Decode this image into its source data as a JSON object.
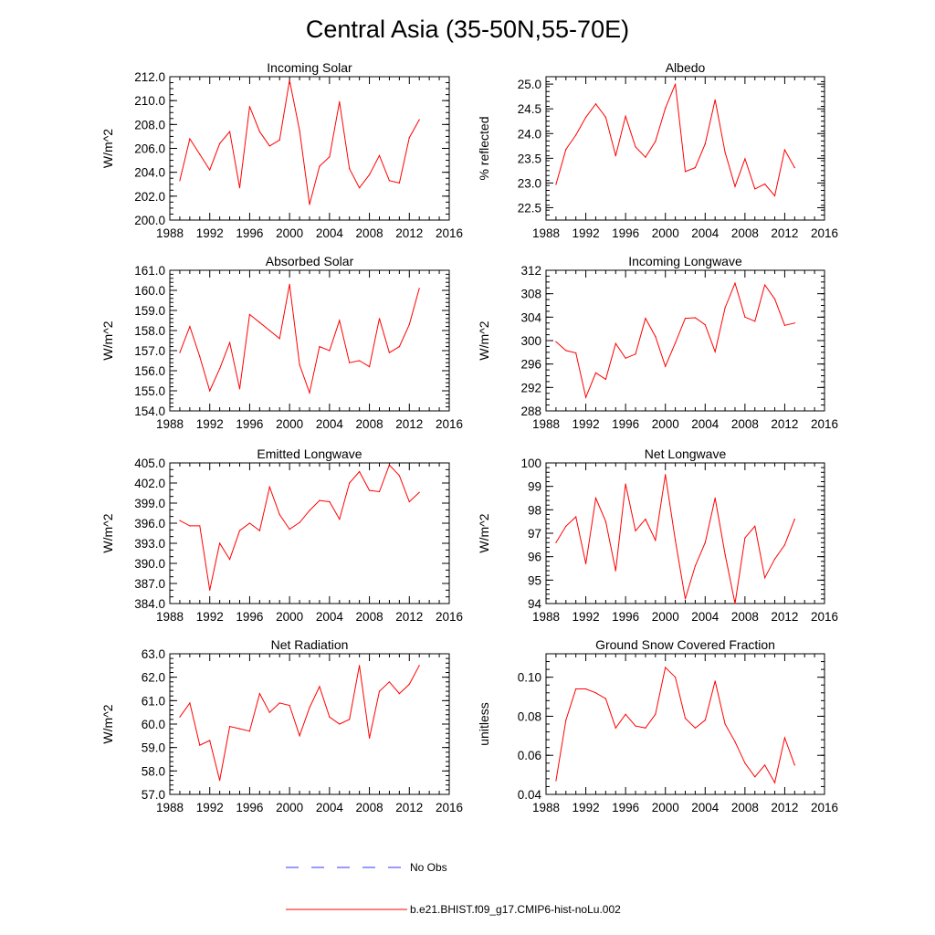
{
  "title": "Central Asia (35-50N,55-70E)",
  "chart_data": [
    {
      "type": "line",
      "title": "Incoming Solar",
      "ylabel": "W/m^2",
      "xlim": [
        1988,
        2016
      ],
      "ylim": [
        200,
        212
      ],
      "xticks": [
        1988,
        1992,
        1996,
        2000,
        2004,
        2008,
        2012,
        2016
      ],
      "yticks": [
        "200.0",
        "202.0",
        "204.0",
        "206.0",
        "208.0",
        "210.0",
        "212.0"
      ],
      "yminor": 0.5,
      "x": [
        1989,
        1990,
        1991,
        1992,
        1993,
        1994,
        1995,
        1996,
        1997,
        1998,
        1999,
        2000,
        2001,
        2002,
        2003,
        2004,
        2005,
        2006,
        2007,
        2008,
        2009,
        2010,
        2011,
        2012,
        2013
      ],
      "series": [
        {
          "values": [
            203.3,
            206.8,
            205.5,
            204.2,
            206.4,
            207.4,
            202.7,
            209.5,
            207.4,
            206.2,
            206.7,
            211.7,
            207.5,
            201.3,
            204.5,
            205.3,
            209.9,
            204.3,
            202.7,
            203.8,
            205.4,
            203.3,
            203.1,
            206.9,
            208.4
          ]
        }
      ]
    },
    {
      "type": "line",
      "title": "Albedo",
      "ylabel": "% reflected",
      "xlim": [
        1988,
        2016
      ],
      "ylim": [
        22.25,
        25.15
      ],
      "xticks": [
        1988,
        1992,
        1996,
        2000,
        2004,
        2008,
        2012,
        2016
      ],
      "yticks": [
        "22.5",
        "23.0",
        "23.5",
        "24.0",
        "24.5",
        "25.0"
      ],
      "yminor": 0.1,
      "x": [
        1989,
        1990,
        1991,
        1992,
        1993,
        1994,
        1995,
        1996,
        1997,
        1998,
        1999,
        2000,
        2001,
        2002,
        2003,
        2004,
        2005,
        2006,
        2007,
        2008,
        2009,
        2010,
        2011,
        2012,
        2013
      ],
      "series": [
        {
          "values": [
            22.97,
            23.68,
            23.97,
            24.33,
            24.6,
            24.33,
            23.55,
            24.35,
            23.73,
            23.52,
            23.84,
            24.51,
            25.0,
            23.23,
            23.31,
            23.79,
            24.68,
            23.62,
            22.93,
            23.49,
            22.88,
            22.98,
            22.74,
            23.67,
            23.31
          ]
        }
      ]
    },
    {
      "type": "line",
      "title": "Absorbed Solar",
      "ylabel": "W/m^2",
      "xlim": [
        1988,
        2016
      ],
      "ylim": [
        154,
        161
      ],
      "xticks": [
        1988,
        1992,
        1996,
        2000,
        2004,
        2008,
        2012,
        2016
      ],
      "yticks": [
        "154.0",
        "155.0",
        "156.0",
        "157.0",
        "158.0",
        "159.0",
        "160.0",
        "161.0"
      ],
      "yminor": 0.2,
      "x": [
        1989,
        1990,
        1991,
        1992,
        1993,
        1994,
        1995,
        1996,
        1997,
        1998,
        1999,
        2000,
        2001,
        2002,
        2003,
        2004,
        2005,
        2006,
        2007,
        2008,
        2009,
        2010,
        2011,
        2012,
        2013
      ],
      "series": [
        {
          "values": [
            156.9,
            158.2,
            156.7,
            155.0,
            156.1,
            157.4,
            155.1,
            158.8,
            158.4,
            158.0,
            157.6,
            160.3,
            156.3,
            154.9,
            157.2,
            157.0,
            158.5,
            156.4,
            156.5,
            156.2,
            158.6,
            156.9,
            157.2,
            158.3,
            160.1
          ]
        }
      ]
    },
    {
      "type": "line",
      "title": "Incoming Longwave",
      "ylabel": "W/m^2",
      "xlim": [
        1988,
        2016
      ],
      "ylim": [
        288,
        312
      ],
      "xticks": [
        1988,
        1992,
        1996,
        2000,
        2004,
        2008,
        2012,
        2016
      ],
      "yticks": [
        "288",
        "292",
        "296",
        "300",
        "304",
        "308",
        "312"
      ],
      "yminor": 1,
      "x": [
        1989,
        1990,
        1991,
        1992,
        1993,
        1994,
        1995,
        1996,
        1997,
        1998,
        1999,
        2000,
        2001,
        2002,
        2003,
        2004,
        2005,
        2006,
        2007,
        2008,
        2009,
        2010,
        2011,
        2012,
        2013
      ],
      "series": [
        {
          "values": [
            299.8,
            298.3,
            297.9,
            290.3,
            294.5,
            293.4,
            299.5,
            297.0,
            297.7,
            303.8,
            300.7,
            295.6,
            299.6,
            303.8,
            303.9,
            302.7,
            298.1,
            305.6,
            309.8,
            304.0,
            303.3,
            309.5,
            307.1,
            302.6,
            303.0
          ]
        }
      ]
    },
    {
      "type": "line",
      "title": "Emitted Longwave",
      "ylabel": "W/m^2",
      "xlim": [
        1988,
        2016
      ],
      "ylim": [
        384,
        405
      ],
      "xticks": [
        1988,
        1992,
        1996,
        2000,
        2004,
        2008,
        2012,
        2016
      ],
      "yticks": [
        "384.0",
        "387.0",
        "390.0",
        "393.0",
        "396.0",
        "399.0",
        "402.0",
        "405.0"
      ],
      "yminor": 1,
      "x": [
        1989,
        1990,
        1991,
        1992,
        1993,
        1994,
        1995,
        1996,
        1997,
        1998,
        1999,
        2000,
        2001,
        2002,
        2003,
        2004,
        2005,
        2006,
        2007,
        2008,
        2009,
        2010,
        2011,
        2012,
        2013
      ],
      "series": [
        {
          "values": [
            396.4,
            395.6,
            395.6,
            386.0,
            393.0,
            390.6,
            394.9,
            396.0,
            394.9,
            401.4,
            397.3,
            395.1,
            396.1,
            397.9,
            399.4,
            399.2,
            396.6,
            402.0,
            403.7,
            400.9,
            400.7,
            404.7,
            403.1,
            399.2,
            400.6
          ]
        }
      ]
    },
    {
      "type": "line",
      "title": "Net Longwave",
      "ylabel": "W/m^2",
      "xlim": [
        1988,
        2016
      ],
      "ylim": [
        94,
        100
      ],
      "xticks": [
        1988,
        1992,
        1996,
        2000,
        2004,
        2008,
        2012,
        2016
      ],
      "yticks": [
        "94",
        "95",
        "96",
        "97",
        "98",
        "99",
        "100"
      ],
      "yminor": 0.2,
      "x": [
        1989,
        1990,
        1991,
        1992,
        1993,
        1994,
        1995,
        1996,
        1997,
        1998,
        1999,
        2000,
        2001,
        2002,
        2003,
        2004,
        2005,
        2006,
        2007,
        2008,
        2009,
        2010,
        2011,
        2012,
        2013
      ],
      "series": [
        {
          "values": [
            96.6,
            97.3,
            97.7,
            95.7,
            98.5,
            97.5,
            95.4,
            99.1,
            97.1,
            97.6,
            96.7,
            99.5,
            96.7,
            94.2,
            95.6,
            96.6,
            98.5,
            96.1,
            94.0,
            96.8,
            97.3,
            95.1,
            95.9,
            96.5,
            97.6
          ]
        }
      ]
    },
    {
      "type": "line",
      "title": "Net Radiation",
      "ylabel": "W/m^2",
      "xlim": [
        1988,
        2016
      ],
      "ylim": [
        57,
        63
      ],
      "xticks": [
        1988,
        1992,
        1996,
        2000,
        2004,
        2008,
        2012,
        2016
      ],
      "yticks": [
        "57.0",
        "58.0",
        "59.0",
        "60.0",
        "61.0",
        "62.0",
        "63.0"
      ],
      "yminor": 0.2,
      "x": [
        1989,
        1990,
        1991,
        1992,
        1993,
        1994,
        1995,
        1996,
        1997,
        1998,
        1999,
        2000,
        2001,
        2002,
        2003,
        2004,
        2005,
        2006,
        2007,
        2008,
        2009,
        2010,
        2011,
        2012,
        2013
      ],
      "series": [
        {
          "values": [
            60.3,
            60.9,
            59.1,
            59.3,
            57.6,
            59.9,
            59.8,
            59.7,
            61.3,
            60.5,
            60.9,
            60.8,
            59.5,
            60.7,
            61.6,
            60.3,
            60.0,
            60.2,
            62.5,
            59.4,
            61.4,
            61.8,
            61.3,
            61.7,
            62.5
          ]
        }
      ]
    },
    {
      "type": "line",
      "title": "Ground Snow Covered Fraction",
      "ylabel": "unitless",
      "xlim": [
        1988,
        2016
      ],
      "ylim": [
        0.04,
        0.112
      ],
      "xticks": [
        1988,
        1992,
        1996,
        2000,
        2004,
        2008,
        2012,
        2016
      ],
      "yticks": [
        "0.04",
        "0.06",
        "0.08",
        "0.10"
      ],
      "yminor": 0.004,
      "x": [
        1989,
        1990,
        1991,
        1992,
        1993,
        1994,
        1995,
        1996,
        1997,
        1998,
        1999,
        2000,
        2001,
        2002,
        2003,
        2004,
        2005,
        2006,
        2007,
        2008,
        2009,
        2010,
        2011,
        2012,
        2013
      ],
      "series": [
        {
          "values": [
            0.047,
            0.078,
            0.094,
            0.094,
            0.092,
            0.089,
            0.074,
            0.081,
            0.075,
            0.074,
            0.081,
            0.105,
            0.1,
            0.079,
            0.074,
            0.078,
            0.098,
            0.076,
            0.067,
            0.056,
            0.049,
            0.055,
            0.046,
            0.069,
            0.055
          ]
        }
      ]
    }
  ],
  "legend": {
    "obs_label": "No Obs",
    "obs_color": "#3333ff",
    "model_label": "b.e21.BHIST.f09_g17.CMIP6-hist-noLu.002",
    "model_color": "#ff0000"
  }
}
